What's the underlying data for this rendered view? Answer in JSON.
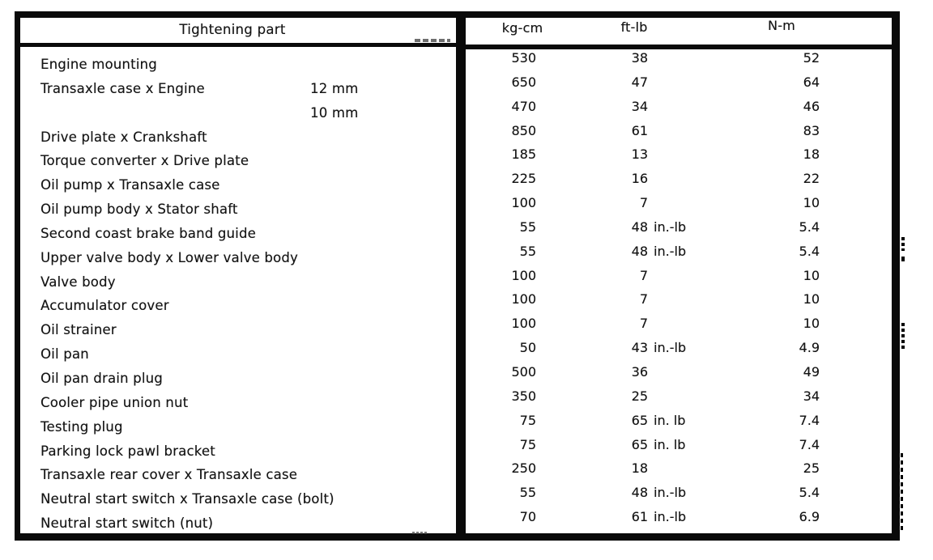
{
  "table": {
    "part_header": "Tightening part",
    "unit_headers": [
      "kg-cm",
      "ft-lb",
      "N-m"
    ],
    "rows": [
      {
        "part": "Engine mounting",
        "size": "",
        "kg_cm": "530",
        "ft_lb": "38",
        "n_m": "52"
      },
      {
        "part": "Transaxle case x Engine",
        "size": "12 mm",
        "kg_cm": "650",
        "ft_lb": "47",
        "n_m": "64"
      },
      {
        "part": "",
        "size": "10 mm",
        "kg_cm": "470",
        "ft_lb": "34",
        "n_m": "46"
      },
      {
        "part": "Drive plate x Crankshaft",
        "size": "",
        "kg_cm": "850",
        "ft_lb": "61",
        "n_m": "83"
      },
      {
        "part": "Torque converter x Drive plate",
        "size": "",
        "kg_cm": "185",
        "ft_lb": "13",
        "n_m": "18"
      },
      {
        "part": "Oil pump x Transaxle case",
        "size": "",
        "kg_cm": "225",
        "ft_lb": "16",
        "n_m": "22"
      },
      {
        "part": "Oil pump body x Stator shaft",
        "size": "",
        "kg_cm": "100",
        "ft_lb": "7",
        "n_m": "10"
      },
      {
        "part": "Second coast brake band guide",
        "size": "",
        "kg_cm": "55",
        "ft_lb": "48 in.-lb",
        "n_m": "5.4"
      },
      {
        "part": "Upper valve body x Lower valve body",
        "size": "",
        "kg_cm": "55",
        "ft_lb": "48 in.-lb",
        "n_m": "5.4"
      },
      {
        "part": "Valve body",
        "size": "",
        "kg_cm": "100",
        "ft_lb": "7",
        "n_m": "10"
      },
      {
        "part": "Accumulator cover",
        "size": "",
        "kg_cm": "100",
        "ft_lb": "7",
        "n_m": "10"
      },
      {
        "part": "Oil strainer",
        "size": "",
        "kg_cm": "100",
        "ft_lb": "7",
        "n_m": "10"
      },
      {
        "part": "Oil pan",
        "size": "",
        "kg_cm": "50",
        "ft_lb": "43 in.-lb",
        "n_m": "4.9"
      },
      {
        "part": "Oil pan drain plug",
        "size": "",
        "kg_cm": "500",
        "ft_lb": "36",
        "n_m": "49"
      },
      {
        "part": "Cooler pipe union nut",
        "size": "",
        "kg_cm": "350",
        "ft_lb": "25",
        "n_m": "34"
      },
      {
        "part": "Testing plug",
        "size": "",
        "kg_cm": "75",
        "ft_lb": "65 in. lb",
        "n_m": "7.4"
      },
      {
        "part": "Parking lock pawl bracket",
        "size": "",
        "kg_cm": "75",
        "ft_lb": "65 in. lb",
        "n_m": "7.4"
      },
      {
        "part": "Transaxle rear cover x Transaxle case",
        "size": "",
        "kg_cm": "250",
        "ft_lb": "18",
        "n_m": "25"
      },
      {
        "part": "Neutral start switch x Transaxle case (bolt)",
        "size": "",
        "kg_cm": "55",
        "ft_lb": "48 in.-lb",
        "n_m": "5.4"
      },
      {
        "part": "Neutral start switch (nut)",
        "size": "",
        "kg_cm": "70",
        "ft_lb": "61 in.-lb",
        "n_m": "6.9"
      }
    ]
  },
  "colors": {
    "ink": "#141414",
    "border": "#0a0a0a",
    "paper": "#ffffff"
  }
}
